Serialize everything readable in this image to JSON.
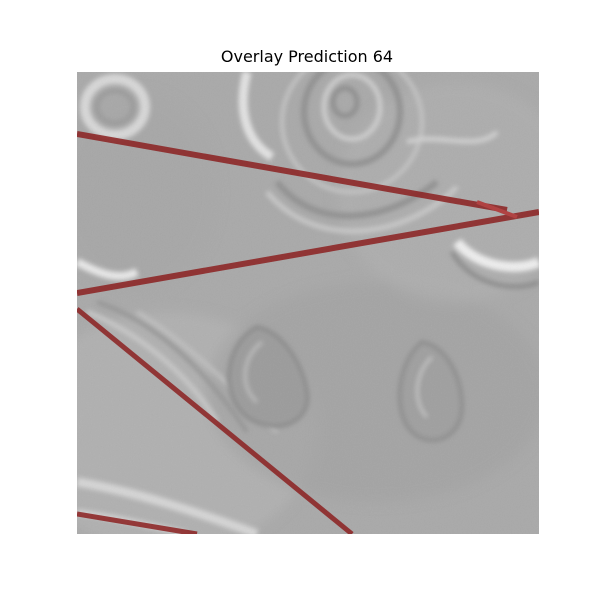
{
  "figure": {
    "title": "Overlay Prediction 64"
  },
  "colors": {
    "background": "#ffffff",
    "image_gray": "#a9a9a9",
    "overlay_line": "#8b2020"
  }
}
